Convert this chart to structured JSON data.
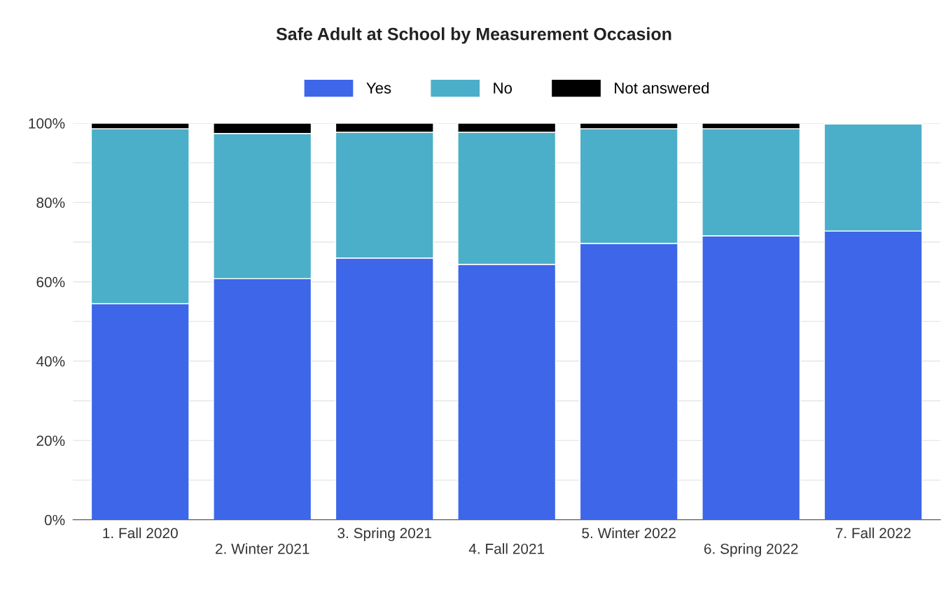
{
  "chart_data": {
    "type": "bar",
    "title": "Safe Adult at School by Measurement Occasion",
    "categories": [
      "1. Fall 2020",
      "2. Winter 2021",
      "3. Spring 2021",
      "4. Fall 2021",
      "5. Winter 2022",
      "6. Spring 2022",
      "7. Fall 2022"
    ],
    "stacked": true,
    "series": [
      {
        "name": "Yes",
        "color": "#3d66e8",
        "values": [
          54.5,
          60.8,
          66.0,
          64.4,
          69.7,
          71.6,
          72.8
        ]
      },
      {
        "name": "No",
        "color": "#4bafc9",
        "values": [
          44.1,
          36.6,
          31.7,
          33.3,
          28.9,
          27.0,
          27.0
        ]
      },
      {
        "name": "Not answered",
        "color": "#000000",
        "values": [
          1.4,
          2.6,
          2.3,
          2.3,
          1.4,
          1.4,
          0.2
        ]
      }
    ],
    "ylim": [
      0,
      100
    ],
    "yticks": [
      {
        "value": 0,
        "label": "0%"
      },
      {
        "value": 10,
        "label": null
      },
      {
        "value": 20,
        "label": "20%"
      },
      {
        "value": 30,
        "label": null
      },
      {
        "value": 40,
        "label": "40%"
      },
      {
        "value": 50,
        "label": null
      },
      {
        "value": 60,
        "label": "60%"
      },
      {
        "value": 70,
        "label": null
      },
      {
        "value": 80,
        "label": "80%"
      },
      {
        "value": 90,
        "label": null
      },
      {
        "value": 100,
        "label": "100%"
      }
    ],
    "grid": "y",
    "legend": "top"
  }
}
